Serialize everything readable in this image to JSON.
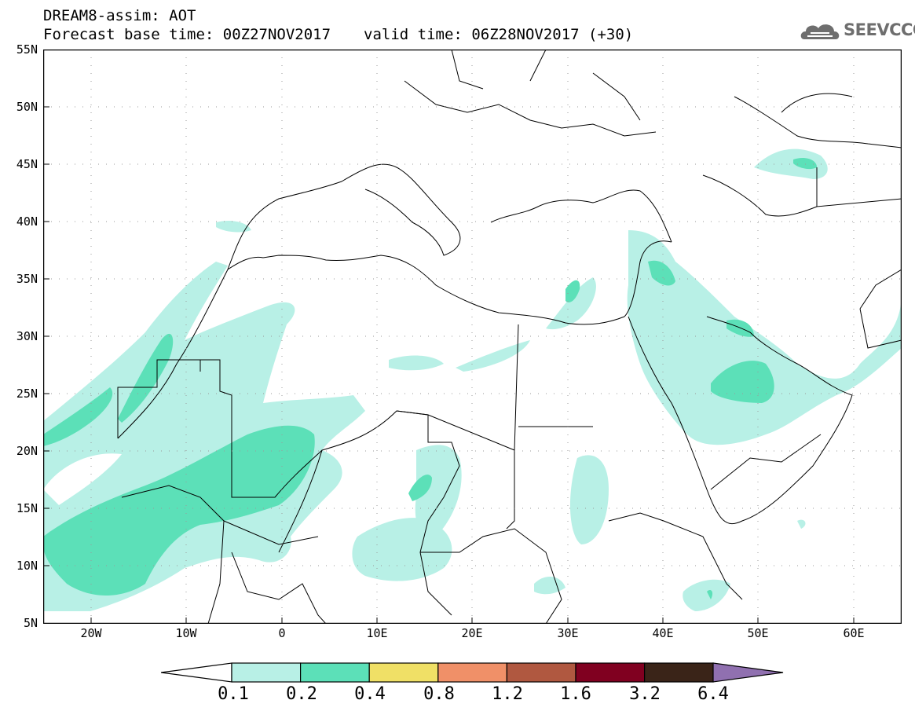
{
  "header": {
    "title": "DREAM8-assim: AOT",
    "base_time": "Forecast base time: 00Z27NOV2017",
    "valid_time": "valid time: 06Z28NOV2017 (+30)"
  },
  "logo": {
    "text": "SEEVCCC",
    "icon": "cloud-icon"
  },
  "map": {
    "lat_labels": [
      "55N",
      "50N",
      "45N",
      "40N",
      "35N",
      "30N",
      "25N",
      "20N",
      "15N",
      "10N",
      "5N"
    ],
    "lon_labels": [
      "20W",
      "10W",
      "0",
      "10E",
      "20E",
      "30E",
      "40E",
      "50E",
      "60E"
    ],
    "lat_range": [
      5,
      55
    ],
    "lon_range": [
      -25,
      65
    ],
    "grid": "dotted"
  },
  "colorbar": {
    "labels": [
      "0.1",
      "0.2",
      "0.4",
      "0.8",
      "1.2",
      "1.6",
      "3.2",
      "6.4"
    ],
    "colors": [
      "#b8f0e6",
      "#5ce0b8",
      "#f0e066",
      "#f09068",
      "#b05840",
      "#800020",
      "#3a2418",
      "#9070b0"
    ]
  }
}
